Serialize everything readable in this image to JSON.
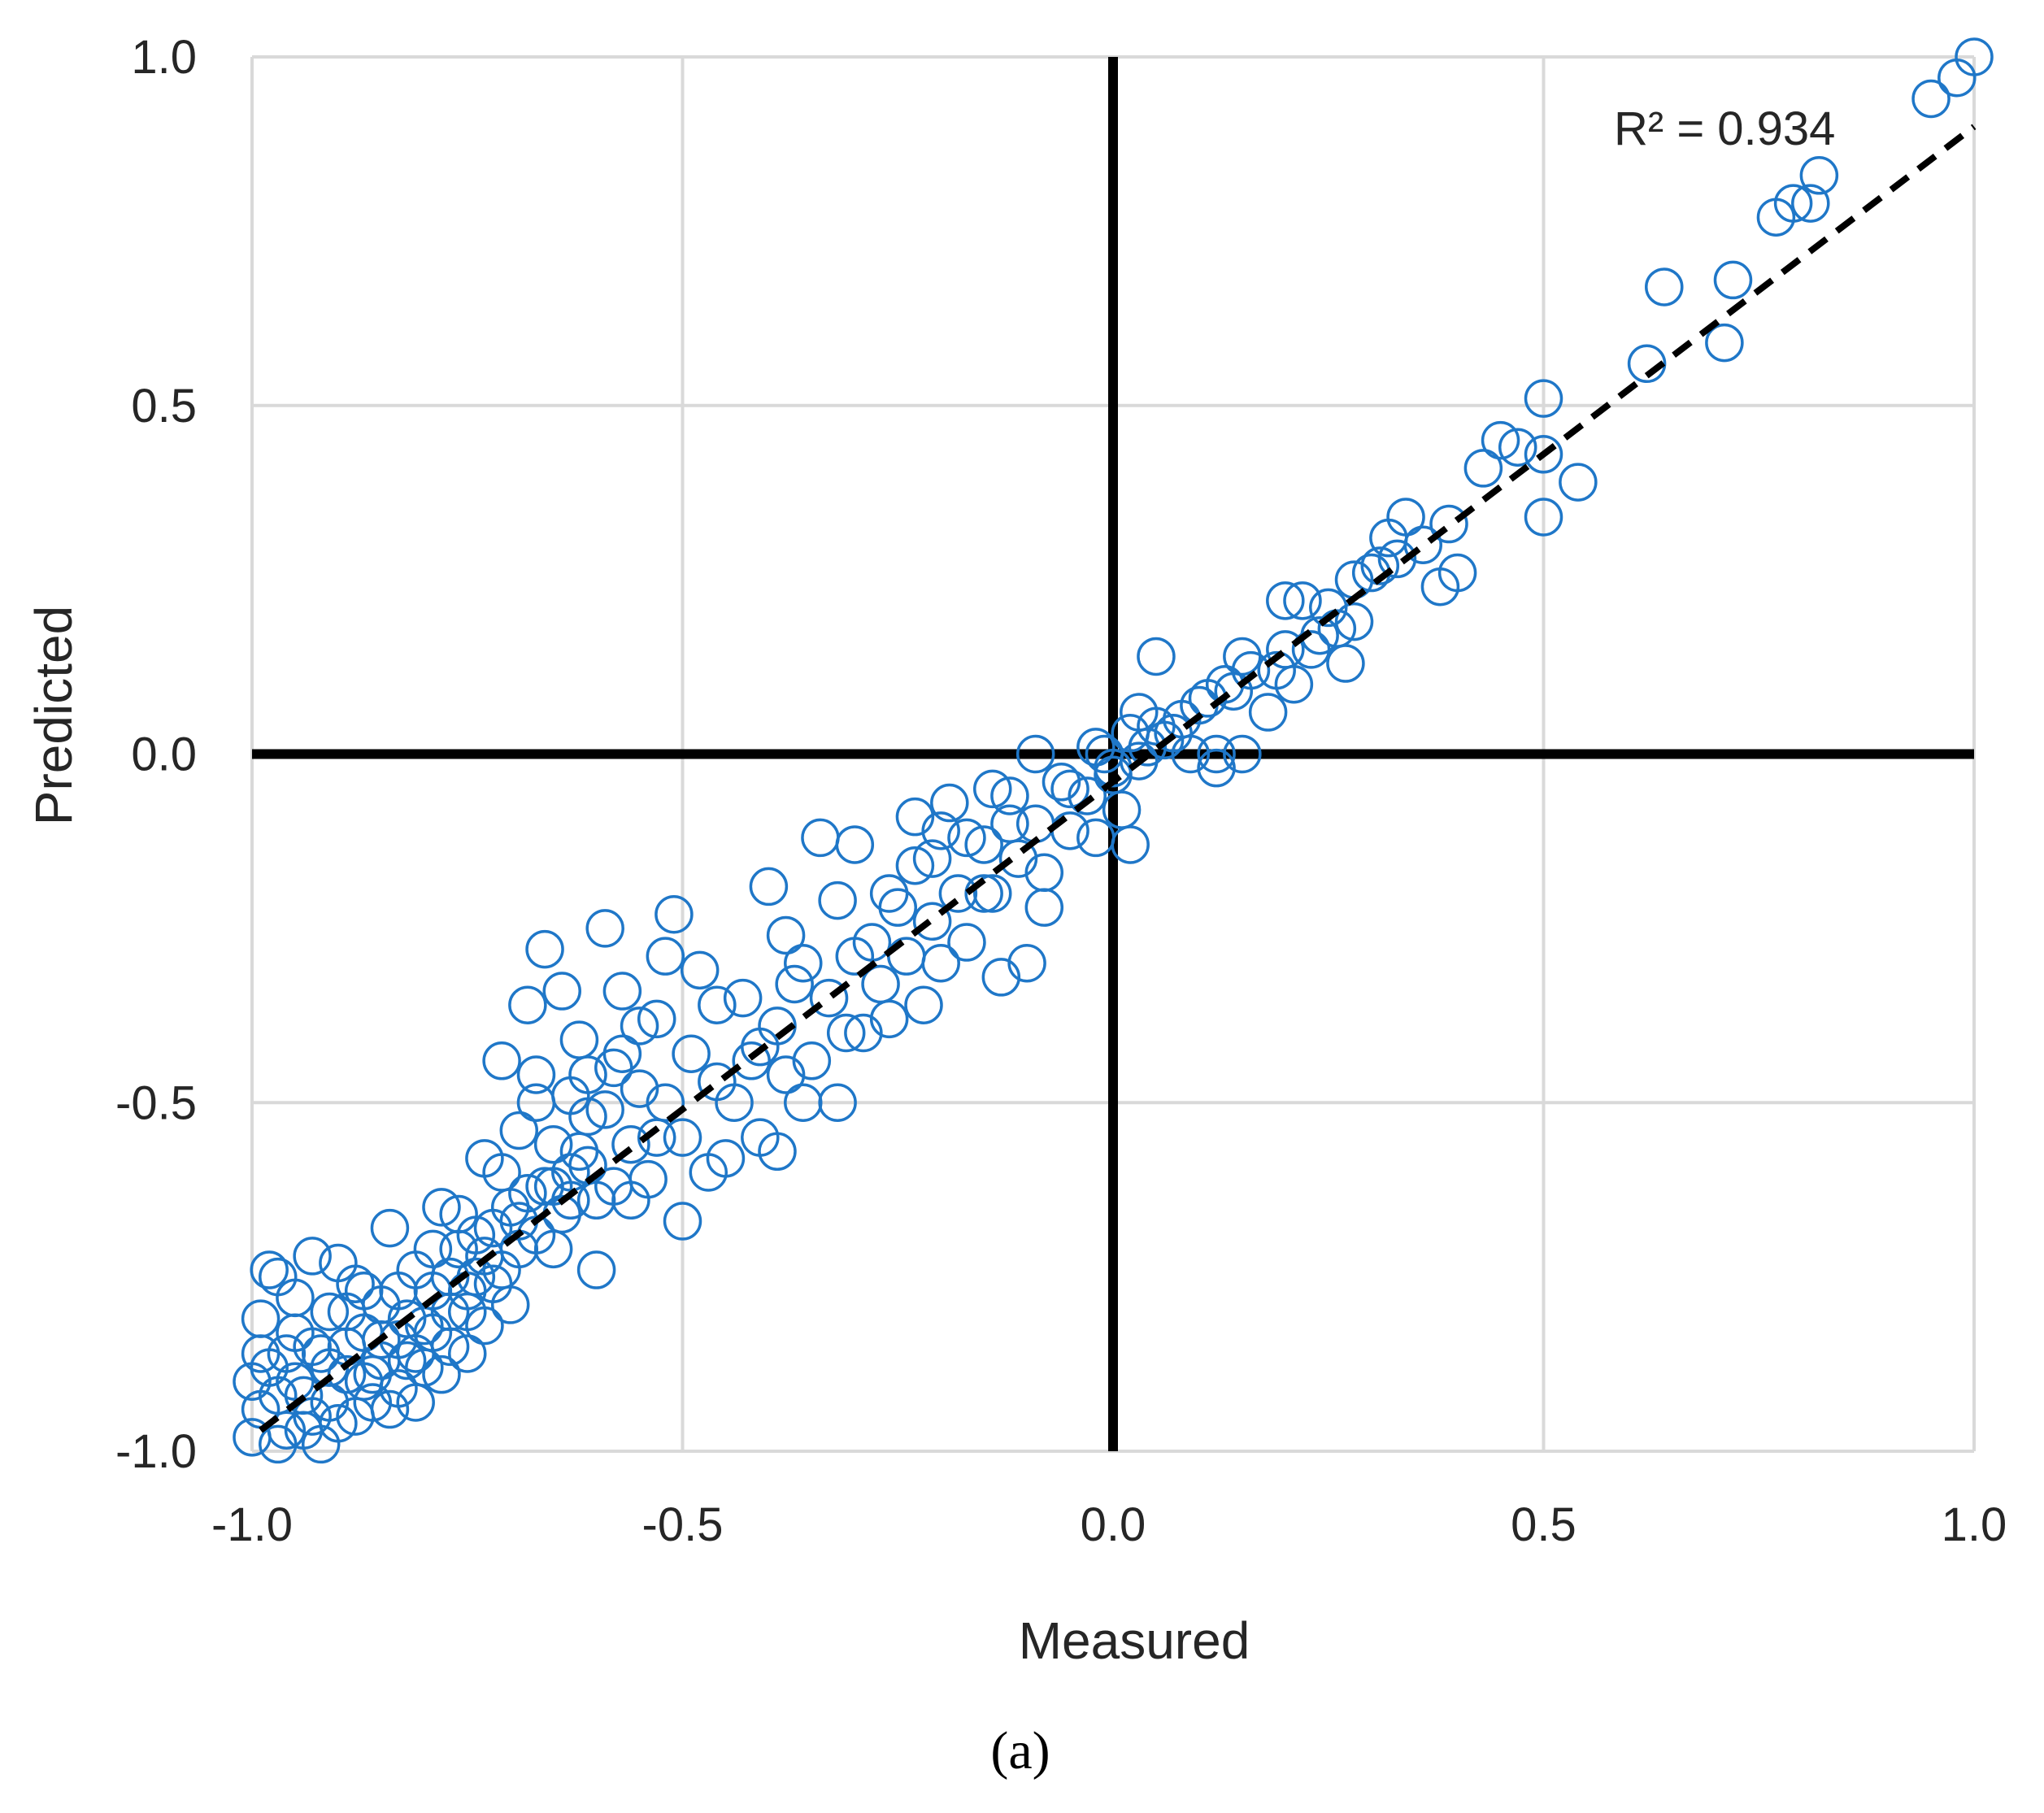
{
  "panel_label": "(a)",
  "chart_data": {
    "type": "scatter",
    "title": "",
    "xlabel": "Measured",
    "ylabel": "Predicted",
    "xlim": [
      -1.0,
      1.0
    ],
    "ylim": [
      -1.0,
      1.0
    ],
    "x_ticks": [
      "-1.0",
      "-0.5",
      "0.0",
      "0.5",
      "1.0"
    ],
    "y_ticks": [
      "-1.0",
      "-0.5",
      "0.0",
      "0.5",
      "1.0"
    ],
    "grid": true,
    "zero_lines": true,
    "marker": "open-circle",
    "marker_color": "#1F77C8",
    "annotation": "R² = 0.934",
    "trendline": {
      "style": "dashed",
      "color": "#000000",
      "x": [
        -0.99,
        1.0
      ],
      "y": [
        -0.97,
        0.9
      ]
    },
    "series": [
      {
        "points": [
          [
            1.0,
            1.0
          ],
          [
            0.98,
            0.97
          ],
          [
            0.95,
            0.94
          ],
          [
            0.82,
            0.83
          ],
          [
            0.81,
            0.79
          ],
          [
            0.79,
            0.79
          ],
          [
            0.77,
            0.77
          ],
          [
            0.72,
            0.68
          ],
          [
            0.71,
            0.59
          ],
          [
            0.64,
            0.67
          ],
          [
            0.62,
            0.56
          ],
          [
            0.54,
            0.39
          ],
          [
            0.5,
            0.51
          ],
          [
            0.5,
            0.43
          ],
          [
            0.5,
            0.34
          ],
          [
            0.47,
            0.44
          ],
          [
            0.45,
            0.45
          ],
          [
            0.43,
            0.41
          ],
          [
            0.39,
            0.33
          ],
          [
            0.4,
            0.26
          ],
          [
            0.38,
            0.24
          ],
          [
            0.36,
            0.3
          ],
          [
            0.34,
            0.34
          ],
          [
            0.33,
            0.28
          ],
          [
            0.32,
            0.31
          ],
          [
            0.3,
            0.26
          ],
          [
            0.28,
            0.25
          ],
          [
            0.28,
            0.19
          ],
          [
            0.27,
            0.13
          ],
          [
            0.25,
            0.21
          ],
          [
            0.24,
            0.17
          ],
          [
            0.22,
            0.22
          ],
          [
            0.2,
            0.22
          ],
          [
            0.2,
            0.15
          ],
          [
            0.19,
            0.12
          ],
          [
            0.18,
            0.06
          ],
          [
            0.15,
            0.0
          ],
          [
            0.15,
            0.14
          ],
          [
            0.13,
            0.1
          ],
          [
            0.12,
            0.0
          ],
          [
            0.12,
            -0.02
          ],
          [
            0.1,
            0.07
          ],
          [
            0.08,
            0.05
          ],
          [
            0.07,
            0.03
          ],
          [
            0.05,
            0.14
          ],
          [
            0.05,
            0.04
          ],
          [
            0.04,
            0.01
          ],
          [
            0.03,
            0.06
          ],
          [
            0.02,
            -0.13
          ],
          [
            0.01,
            -0.08
          ],
          [
            0.0,
            -0.03
          ],
          [
            -0.01,
            0.0
          ],
          [
            -0.02,
            -0.12
          ],
          [
            -0.05,
            -0.05
          ],
          [
            -0.08,
            -0.22
          ],
          [
            -0.09,
            0.0
          ],
          [
            -0.1,
            -0.3
          ],
          [
            -0.12,
            -0.1
          ],
          [
            -0.13,
            -0.32
          ],
          [
            -0.14,
            -0.05
          ],
          [
            -0.15,
            -0.2
          ],
          [
            -0.17,
            -0.12
          ],
          [
            -0.19,
            -0.07
          ],
          [
            -0.2,
            -0.3
          ],
          [
            -0.21,
            -0.15
          ],
          [
            -0.22,
            -0.36
          ],
          [
            -0.23,
            -0.09
          ],
          [
            -0.25,
            -0.22
          ],
          [
            -0.26,
            -0.38
          ],
          [
            -0.28,
            -0.27
          ],
          [
            -0.3,
            -0.13
          ],
          [
            -0.31,
            -0.4
          ],
          [
            -0.32,
            -0.21
          ],
          [
            -0.34,
            -0.12
          ],
          [
            -0.36,
            -0.5
          ],
          [
            -0.37,
            -0.33
          ],
          [
            -0.38,
            -0.26
          ],
          [
            -0.39,
            -0.57
          ],
          [
            -0.4,
            -0.19
          ],
          [
            -0.41,
            -0.42
          ],
          [
            -0.43,
            -0.35
          ],
          [
            -0.45,
            -0.58
          ],
          [
            -0.46,
            -0.47
          ],
          [
            -0.48,
            -0.31
          ],
          [
            -0.5,
            -0.67
          ],
          [
            -0.51,
            -0.23
          ],
          [
            -0.52,
            -0.29
          ],
          [
            -0.53,
            -0.55
          ],
          [
            -0.55,
            -0.39
          ],
          [
            -0.56,
            -0.64
          ],
          [
            -0.57,
            -0.34
          ],
          [
            -0.58,
            -0.45
          ],
          [
            -0.59,
            -0.25
          ],
          [
            -0.6,
            -0.74
          ],
          [
            -0.61,
            -0.52
          ],
          [
            -0.62,
            -0.41
          ],
          [
            -0.63,
            -0.6
          ],
          [
            -0.64,
            -0.34
          ],
          [
            -0.65,
            -0.71
          ],
          [
            -0.66,
            -0.28
          ],
          [
            -0.67,
            -0.46
          ],
          [
            -0.68,
            -0.36
          ],
          [
            -0.69,
            -0.54
          ],
          [
            -0.7,
            -0.65
          ],
          [
            -0.71,
            -0.44
          ],
          [
            -0.72,
            -0.76
          ],
          [
            -0.73,
            -0.58
          ],
          [
            -0.74,
            -0.69
          ],
          [
            -0.75,
            -0.8
          ],
          [
            -0.76,
            -0.71
          ],
          [
            -0.77,
            -0.85
          ],
          [
            -0.78,
            -0.65
          ],
          [
            -0.79,
            -0.77
          ],
          [
            -0.8,
            -0.88
          ],
          [
            -0.81,
            -0.74
          ],
          [
            -0.82,
            -0.81
          ],
          [
            -0.83,
            -0.91
          ],
          [
            -0.84,
            -0.68
          ],
          [
            -0.85,
            -0.79
          ],
          [
            -0.86,
            -0.93
          ],
          [
            -0.87,
            -0.83
          ],
          [
            -0.88,
            -0.76
          ],
          [
            -0.89,
            -0.89
          ],
          [
            -0.9,
            -0.96
          ],
          [
            -0.91,
            -0.8
          ],
          [
            -0.92,
            -0.86
          ],
          [
            -0.93,
            -0.72
          ],
          [
            -0.94,
            -0.92
          ],
          [
            -0.95,
            -0.83
          ],
          [
            -0.96,
            -0.97
          ],
          [
            -0.97,
            -0.75
          ],
          [
            -0.98,
            -0.88
          ],
          [
            -0.99,
            -0.94
          ],
          [
            -1.0,
            -0.98
          ],
          [
            -1.0,
            -0.9
          ],
          [
            -0.99,
            -0.81
          ],
          [
            -0.98,
            -0.74
          ],
          [
            -0.97,
            -0.99
          ],
          [
            -0.96,
            -0.86
          ],
          [
            -0.95,
            -0.78
          ],
          [
            -0.94,
            -0.97
          ],
          [
            -0.93,
            -0.85
          ],
          [
            -0.92,
            -0.99
          ],
          [
            -0.91,
            -0.93
          ],
          [
            -0.9,
            -0.73
          ],
          [
            -0.89,
            -0.85
          ],
          [
            -0.88,
            -0.95
          ],
          [
            -0.87,
            -0.77
          ],
          [
            -0.86,
            -0.89
          ],
          [
            -0.85,
            -0.84
          ],
          [
            -0.84,
            -0.94
          ],
          [
            -0.83,
            -0.77
          ],
          [
            -0.82,
            -0.87
          ],
          [
            -0.81,
            -0.93
          ],
          [
            -0.8,
            -0.82
          ],
          [
            -0.79,
            -0.71
          ],
          [
            -0.78,
            -0.89
          ],
          [
            -0.77,
            -0.8
          ],
          [
            -0.76,
            -0.66
          ],
          [
            -0.75,
            -0.86
          ],
          [
            -0.74,
            -0.75
          ],
          [
            -0.73,
            -0.82
          ],
          [
            -0.72,
            -0.68
          ],
          [
            -0.71,
            -0.6
          ],
          [
            -0.7,
            -0.79
          ],
          [
            -0.69,
            -0.71
          ],
          [
            -0.68,
            -0.63
          ],
          [
            -0.67,
            -0.5
          ],
          [
            -0.66,
            -0.62
          ],
          [
            -0.65,
            -0.56
          ],
          [
            -0.64,
            -0.66
          ],
          [
            -0.63,
            -0.49
          ],
          [
            -0.62,
            -0.57
          ],
          [
            -0.61,
            -0.46
          ],
          [
            -0.6,
            -0.64
          ],
          [
            -0.59,
            -0.51
          ],
          [
            -0.58,
            -0.62
          ],
          [
            -0.57,
            -0.43
          ],
          [
            -0.56,
            -0.56
          ],
          [
            -0.55,
            -0.48
          ],
          [
            -0.54,
            -0.61
          ],
          [
            -0.53,
            -0.38
          ],
          [
            -0.52,
            -0.5
          ],
          [
            -0.5,
            -0.55
          ],
          [
            -0.49,
            -0.43
          ],
          [
            -0.47,
            -0.6
          ],
          [
            -0.46,
            -0.36
          ],
          [
            -0.44,
            -0.5
          ],
          [
            -0.42,
            -0.44
          ],
          [
            -0.41,
            -0.55
          ],
          [
            -0.39,
            -0.39
          ],
          [
            -0.38,
            -0.46
          ],
          [
            -0.36,
            -0.3
          ],
          [
            -0.35,
            -0.44
          ],
          [
            -0.33,
            -0.35
          ],
          [
            -0.32,
            -0.5
          ],
          [
            -0.3,
            -0.29
          ],
          [
            -0.29,
            -0.4
          ],
          [
            -0.27,
            -0.33
          ],
          [
            -0.26,
            -0.2
          ],
          [
            -0.24,
            -0.29
          ],
          [
            -0.23,
            -0.16
          ],
          [
            -0.21,
            -0.24
          ],
          [
            -0.2,
            -0.11
          ],
          [
            -0.18,
            -0.2
          ],
          [
            -0.17,
            -0.27
          ],
          [
            -0.15,
            -0.13
          ],
          [
            -0.14,
            -0.2
          ],
          [
            -0.12,
            -0.06
          ],
          [
            -0.11,
            -0.15
          ],
          [
            -0.09,
            -0.1
          ],
          [
            -0.08,
            -0.17
          ],
          [
            -0.06,
            -0.04
          ],
          [
            -0.05,
            -0.11
          ],
          [
            -0.03,
            -0.06
          ],
          [
            -0.02,
            0.01
          ],
          [
            0.0,
            -0.02
          ],
          [
            0.02,
            0.03
          ],
          [
            0.03,
            -0.01
          ],
          [
            0.06,
            0.02
          ],
          [
            0.09,
            0.0
          ],
          [
            0.11,
            0.08
          ],
          [
            0.14,
            0.09
          ],
          [
            0.16,
            0.12
          ],
          [
            0.21,
            0.1
          ],
          [
            0.23,
            0.15
          ],
          [
            0.26,
            0.18
          ],
          [
            0.31,
            0.27
          ],
          [
            -0.99,
            -0.86
          ],
          [
            -0.97,
            -0.92
          ],
          [
            -0.95,
            -0.9
          ],
          [
            -0.93,
            -0.95
          ],
          [
            -0.91,
            -0.88
          ],
          [
            -0.89,
            -0.8
          ],
          [
            -0.87,
            -0.9
          ],
          [
            -0.85,
            -0.87
          ],
          [
            -0.83,
            -0.84
          ],
          [
            -0.81,
            -0.86
          ],
          [
            -0.79,
            -0.83
          ],
          [
            -0.77,
            -0.75
          ],
          [
            -0.75,
            -0.77
          ],
          [
            -0.73,
            -0.72
          ],
          [
            -0.71,
            -0.74
          ],
          [
            -0.69,
            -0.67
          ],
          [
            -0.67,
            -0.69
          ],
          [
            -0.65,
            -0.62
          ],
          [
            -0.63,
            -0.64
          ],
          [
            -0.61,
            -0.59
          ]
        ]
      }
    ]
  }
}
